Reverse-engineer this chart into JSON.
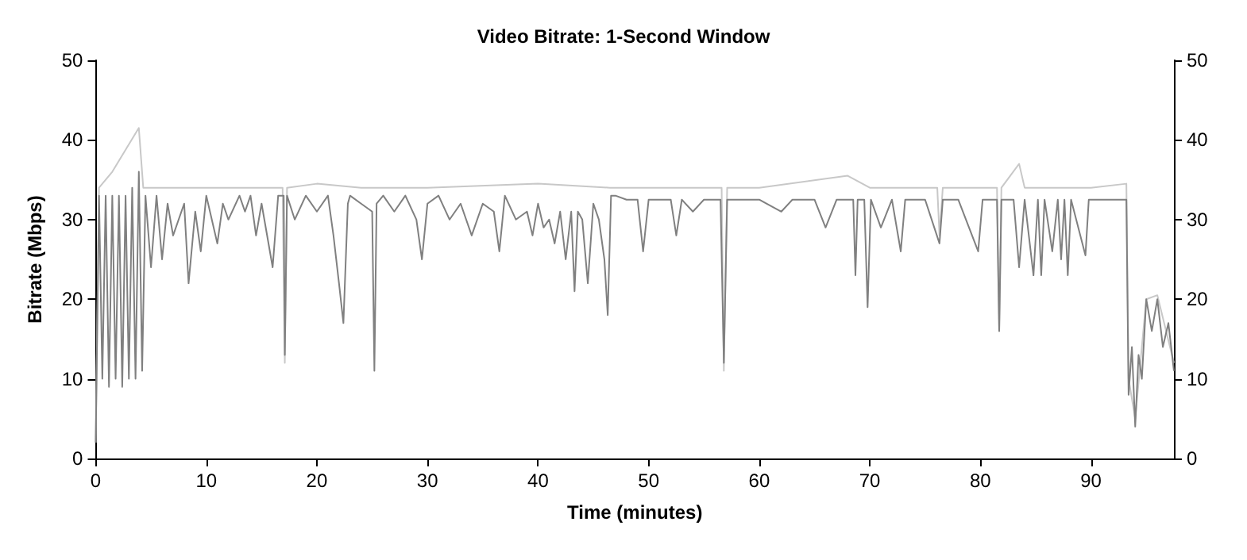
{
  "chart_data": {
    "type": "line",
    "title": "Video Bitrate: 1-Second Window",
    "xlabel": "Time (minutes)",
    "ylabel": "Bitrate (Mbps)",
    "xlim": [
      0,
      97.5
    ],
    "xticks": [
      0,
      10,
      20,
      30,
      40,
      50,
      60,
      70,
      80,
      90
    ],
    "ylim": [
      0,
      50
    ],
    "yticks": [
      0,
      10,
      20,
      30,
      40,
      50
    ],
    "y2lim": [
      0,
      50
    ],
    "y2ticks": [
      0,
      10,
      20,
      30,
      40,
      50
    ],
    "grid": false,
    "marker": "none",
    "line_style": "solid",
    "series": [
      {
        "color": "#c8c8c8",
        "x": [
          0,
          0.3,
          1.5,
          3.9,
          4.3,
          10,
          16.9,
          17.1,
          17.3,
          20,
          24,
          30,
          40,
          46.5,
          47,
          56.6,
          56.8,
          57.1,
          60,
          68,
          70,
          76.1,
          76.3,
          76.6,
          80,
          81.5,
          81.7,
          81.9,
          83.5,
          84,
          90,
          93.2,
          93.4,
          94,
          95,
          96,
          97.5
        ],
        "values": [
          2,
          34,
          36,
          41.5,
          34,
          34,
          34,
          12,
          34,
          34.5,
          34,
          34,
          34.5,
          34,
          34,
          34,
          11,
          34,
          34,
          35.5,
          34,
          34,
          28,
          34,
          34,
          34,
          16,
          34,
          37,
          34,
          34,
          34.5,
          10,
          5,
          20,
          20.5,
          12
        ]
      },
      {
        "color": "#808080",
        "x": [
          0,
          0.3,
          0.6,
          0.9,
          1.2,
          1.5,
          1.8,
          2.1,
          2.4,
          2.7,
          3.0,
          3.3,
          3.6,
          3.9,
          4.2,
          4.5,
          5,
          5.5,
          6,
          6.5,
          7,
          8,
          8.4,
          9,
          9.5,
          10,
          11,
          11.5,
          12,
          13,
          13.5,
          14,
          14.5,
          15,
          16,
          16.5,
          17,
          17.1,
          17.3,
          18,
          19,
          20,
          21,
          21.5,
          22,
          22.4,
          22.8,
          23,
          24,
          25,
          25.2,
          25.4,
          26,
          27,
          28,
          29,
          29.5,
          30,
          31,
          32,
          33,
          34,
          35,
          36,
          36.5,
          37,
          38,
          39,
          39.5,
          40,
          40.5,
          41,
          41.5,
          42,
          42.5,
          43,
          43.3,
          43.6,
          44,
          44.5,
          45,
          45.5,
          46,
          46.3,
          46.6,
          47,
          48,
          49,
          49.5,
          50,
          52,
          52.5,
          53,
          54,
          55,
          56.5,
          56.8,
          57.1,
          58,
          60,
          62,
          63,
          65,
          66,
          67,
          68.5,
          68.7,
          68.9,
          69.5,
          69.8,
          70.1,
          71,
          72,
          72.8,
          73.2,
          75,
          76.3,
          76.6,
          78,
          79.8,
          80.2,
          81.5,
          81.7,
          81.9,
          83,
          83.5,
          84,
          84.8,
          85.2,
          85.5,
          85.8,
          86.5,
          87,
          87.3,
          87.6,
          87.9,
          88.2,
          89.5,
          89.8,
          93,
          93.2,
          93.4,
          93.7,
          94,
          94.3,
          94.6,
          95,
          95.5,
          96,
          96.5,
          97,
          97.5
        ],
        "values": [
          2,
          33,
          10,
          33,
          9,
          33,
          10,
          33,
          9,
          33,
          10,
          34,
          10,
          36,
          11,
          33,
          24,
          33,
          25,
          32,
          28,
          32,
          22,
          31,
          26,
          33,
          27,
          32,
          30,
          33,
          31,
          33,
          28,
          32,
          24,
          33,
          33,
          13,
          33,
          30,
          33,
          31,
          33,
          28,
          22,
          17,
          32,
          33,
          32,
          31,
          11,
          32,
          33,
          31,
          33,
          30,
          25,
          32,
          33,
          30,
          32,
          28,
          32,
          31,
          26,
          33,
          30,
          31,
          28,
          32,
          29,
          30,
          27,
          31,
          25,
          31,
          21,
          31,
          30,
          22,
          32,
          30,
          25,
          18,
          33,
          33,
          32.5,
          32.5,
          26,
          32.5,
          32.5,
          28,
          32.5,
          31,
          32.5,
          32.5,
          12,
          32.5,
          32.5,
          32.5,
          31,
          32.5,
          32.5,
          29,
          32.5,
          32.5,
          23,
          32.5,
          32.5,
          19,
          32.5,
          29,
          32.5,
          26,
          32.5,
          32.5,
          27,
          32.5,
          32.5,
          26,
          32.5,
          32.5,
          16,
          32.5,
          32.5,
          24,
          32.5,
          23,
          32.5,
          23,
          32.5,
          26,
          32.5,
          25,
          32.5,
          23,
          32.5,
          25.5,
          32.5,
          32.5,
          32.5,
          8,
          14,
          4,
          13,
          10,
          20,
          16,
          20,
          14,
          17,
          11
        ]
      }
    ]
  }
}
